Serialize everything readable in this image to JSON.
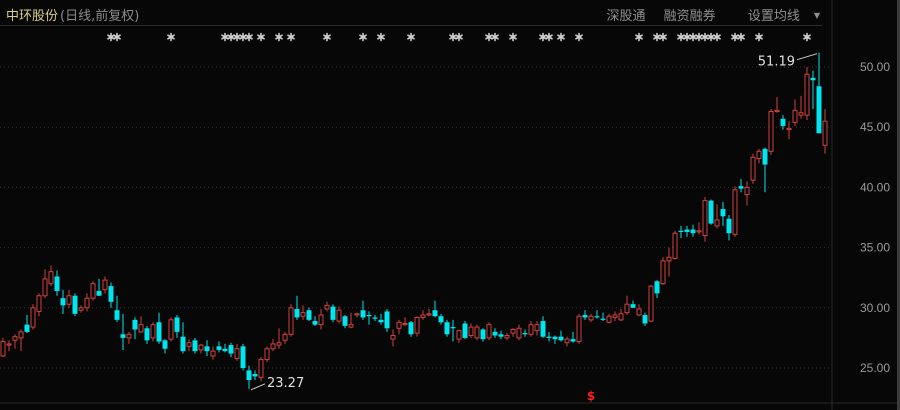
{
  "header": {
    "stock_name": "中环股份",
    "mode": "(日线,前复权)",
    "links": [
      "深股通",
      "融资融券",
      "设置均线"
    ],
    "dropdown_icon": "caret-down-icon"
  },
  "colors": {
    "up": "#d0403c",
    "down": "#00e5ee",
    "background": "#070707",
    "grid": "#333333",
    "axis_text": "#9a9a9a",
    "marker": "#cfcfcf",
    "special_marker": "#ff2020"
  },
  "chart_data": {
    "type": "candlestick",
    "title": "中环股份",
    "ylim": [
      22.5,
      52.5
    ],
    "yticks": [
      25,
      30,
      35,
      40,
      45,
      50
    ],
    "ytick_labels": [
      "25.00",
      "30.00",
      "35.00",
      "40.00",
      "45.00",
      "50.00"
    ],
    "grid": true,
    "annotations": {
      "max": {
        "label": "51.19",
        "value": 51.19
      },
      "min": {
        "label": "23.27",
        "value": 23.27
      }
    },
    "event_markers": [
      18,
      19,
      28,
      37,
      38,
      39,
      40,
      41,
      43,
      46,
      48,
      54,
      60,
      63,
      68,
      75,
      76,
      81,
      82,
      85,
      90,
      91,
      93,
      96,
      106,
      109,
      110,
      113,
      114,
      115,
      116,
      117,
      118,
      119,
      122,
      123,
      126,
      134
    ],
    "special_marker": {
      "index": 98,
      "label": "$"
    },
    "ohlc": [
      [
        26.0,
        27.5,
        25.9,
        27.2
      ],
      [
        26.9,
        27.3,
        26.4,
        27.0
      ],
      [
        27.3,
        27.8,
        26.6,
        27.6
      ],
      [
        27.5,
        28.2,
        26.4,
        28.0
      ],
      [
        28.6,
        29.4,
        27.9,
        28.0
      ],
      [
        28.4,
        30.3,
        28.2,
        30.0
      ],
      [
        29.7,
        31.2,
        29.3,
        31.0
      ],
      [
        31.0,
        33.2,
        30.8,
        32.4
      ],
      [
        32.0,
        33.5,
        31.8,
        33.0
      ],
      [
        32.6,
        33.1,
        31.0,
        31.4
      ],
      [
        30.8,
        31.5,
        29.5,
        30.2
      ],
      [
        30.3,
        31.5,
        30.0,
        31.0
      ],
      [
        31.0,
        31.2,
        29.3,
        29.5
      ],
      [
        29.8,
        30.2,
        29.6,
        30.0
      ],
      [
        30.0,
        31.2,
        29.7,
        30.8
      ],
      [
        30.8,
        32.2,
        30.6,
        32.0
      ],
      [
        31.4,
        32.4,
        31.0,
        31.0
      ],
      [
        31.5,
        32.6,
        31.2,
        32.3
      ],
      [
        31.8,
        32.1,
        30.0,
        30.5
      ],
      [
        29.8,
        31.0,
        28.8,
        29.0
      ],
      [
        27.8,
        29.5,
        26.5,
        27.5
      ],
      [
        27.5,
        28.0,
        27.0,
        27.8
      ],
      [
        29.0,
        29.2,
        27.4,
        28.2
      ],
      [
        28.0,
        29.3,
        27.9,
        28.6
      ],
      [
        28.3,
        28.5,
        27.0,
        27.3
      ],
      [
        27.5,
        28.8,
        27.2,
        28.6
      ],
      [
        28.8,
        29.6,
        27.0,
        27.2
      ],
      [
        27.3,
        27.4,
        26.2,
        26.6
      ],
      [
        27.4,
        29.2,
        27.2,
        29.0
      ],
      [
        29.2,
        29.4,
        27.5,
        28.0
      ],
      [
        27.6,
        28.8,
        26.2,
        26.4
      ],
      [
        26.8,
        27.4,
        26.4,
        27.1
      ],
      [
        27.3,
        27.5,
        26.2,
        26.4
      ],
      [
        26.5,
        27.0,
        26.2,
        26.9
      ],
      [
        26.8,
        27.3,
        26.0,
        26.4
      ],
      [
        26.0,
        26.8,
        25.7,
        26.4
      ],
      [
        26.8,
        27.2,
        26.3,
        26.5
      ],
      [
        26.6,
        27.0,
        26.3,
        26.4
      ],
      [
        26.9,
        27.1,
        25.9,
        26.2
      ],
      [
        25.8,
        27.0,
        25.6,
        26.6
      ],
      [
        26.8,
        27.0,
        24.8,
        25.0
      ],
      [
        24.8,
        25.2,
        23.27,
        24.0
      ],
      [
        24.5,
        24.8,
        24.0,
        24.3
      ],
      [
        24.2,
        25.9,
        23.9,
        25.7
      ],
      [
        25.7,
        26.8,
        25.5,
        26.6
      ],
      [
        26.6,
        27.4,
        26.4,
        27.0
      ],
      [
        26.9,
        28.3,
        26.6,
        27.1
      ],
      [
        27.3,
        28.0,
        27.0,
        27.8
      ],
      [
        27.8,
        30.3,
        27.6,
        30.0
      ],
      [
        29.9,
        31.0,
        29.0,
        29.2
      ],
      [
        29.3,
        30.2,
        29.0,
        29.6
      ],
      [
        29.8,
        30.0,
        28.9,
        29.0
      ],
      [
        28.9,
        29.3,
        28.5,
        28.6
      ],
      [
        28.6,
        29.9,
        28.2,
        29.4
      ],
      [
        29.9,
        30.5,
        29.7,
        30.2
      ],
      [
        30.1,
        30.3,
        28.8,
        29.0
      ],
      [
        28.9,
        30.1,
        28.7,
        29.8
      ],
      [
        29.3,
        29.4,
        28.3,
        28.5
      ],
      [
        28.4,
        29.6,
        28.3,
        28.6
      ],
      [
        29.4,
        29.6,
        29.2,
        29.5
      ],
      [
        29.8,
        30.6,
        29.0,
        29.2
      ],
      [
        29.4,
        29.7,
        28.6,
        29.3
      ],
      [
        29.2,
        29.4,
        28.9,
        29.1
      ],
      [
        29.0,
        29.5,
        28.6,
        28.8
      ],
      [
        29.7,
        29.9,
        28.0,
        28.3
      ],
      [
        27.4,
        28.2,
        26.8,
        27.7
      ],
      [
        28.3,
        29.0,
        27.8,
        28.8
      ],
      [
        28.6,
        29.2,
        28.5,
        28.7
      ],
      [
        28.8,
        28.9,
        27.6,
        27.8
      ],
      [
        27.9,
        29.3,
        27.6,
        29.2
      ],
      [
        29.2,
        29.8,
        29.0,
        29.4
      ],
      [
        29.4,
        29.9,
        29.3,
        29.5
      ],
      [
        29.8,
        30.6,
        29.2,
        29.3
      ],
      [
        29.3,
        29.5,
        28.6,
        28.8
      ],
      [
        28.8,
        29.0,
        27.6,
        27.8
      ],
      [
        28.4,
        29.0,
        27.2,
        28.3
      ],
      [
        27.4,
        28.2,
        27.1,
        28.1
      ],
      [
        28.7,
        28.9,
        27.4,
        27.5
      ],
      [
        27.7,
        28.7,
        27.5,
        28.4
      ],
      [
        27.5,
        28.6,
        27.3,
        28.4
      ],
      [
        28.2,
        28.3,
        27.2,
        27.4
      ],
      [
        27.5,
        28.8,
        27.3,
        28.6
      ],
      [
        28.0,
        28.3,
        27.5,
        27.7
      ],
      [
        27.8,
        28.1,
        27.4,
        27.6
      ],
      [
        27.5,
        27.9,
        27.3,
        27.7
      ],
      [
        27.9,
        28.3,
        27.6,
        28.2
      ],
      [
        27.5,
        28.6,
        27.3,
        28.3
      ],
      [
        27.9,
        28.2,
        27.6,
        27.8
      ],
      [
        27.8,
        28.9,
        27.6,
        28.6
      ],
      [
        28.1,
        28.9,
        27.7,
        28.6
      ],
      [
        28.9,
        29.3,
        27.5,
        27.6
      ],
      [
        27.6,
        28.0,
        27.2,
        27.5
      ],
      [
        27.6,
        27.7,
        27.0,
        27.4
      ],
      [
        27.6,
        28.1,
        27.2,
        27.3
      ],
      [
        27.1,
        27.6,
        26.8,
        27.4
      ],
      [
        27.4,
        28.0,
        27.1,
        27.2
      ],
      [
        27.2,
        29.5,
        27.0,
        29.3
      ],
      [
        29.4,
        29.8,
        29.0,
        29.2
      ],
      [
        29.0,
        29.5,
        28.8,
        29.3
      ],
      [
        29.3,
        29.8,
        29.1,
        29.2
      ],
      [
        29.1,
        29.6,
        28.9,
        29.0
      ],
      [
        28.8,
        29.5,
        28.7,
        29.3
      ],
      [
        29.2,
        29.7,
        28.9,
        29.4
      ],
      [
        29.0,
        29.9,
        28.9,
        29.5
      ],
      [
        29.6,
        31.0,
        29.4,
        30.3
      ],
      [
        30.3,
        30.6,
        30.0,
        30.0
      ],
      [
        29.4,
        30.3,
        29.3,
        29.9
      ],
      [
        29.4,
        29.6,
        28.5,
        28.7
      ],
      [
        28.9,
        31.9,
        28.8,
        31.8
      ],
      [
        32.2,
        32.3,
        30.8,
        31.2
      ],
      [
        32.0,
        34.2,
        31.9,
        33.9
      ],
      [
        33.9,
        35.0,
        32.6,
        34.2
      ],
      [
        34.1,
        36.4,
        34.0,
        36.2
      ],
      [
        36.4,
        36.8,
        35.8,
        36.3
      ],
      [
        36.5,
        36.8,
        35.9,
        36.3
      ],
      [
        36.5,
        36.9,
        35.9,
        36.2
      ],
      [
        36.3,
        37.1,
        36.1,
        36.4
      ],
      [
        36.0,
        39.2,
        35.5,
        38.9
      ],
      [
        38.9,
        39.0,
        36.9,
        37.0
      ],
      [
        36.8,
        38.6,
        36.6,
        37.3
      ],
      [
        38.2,
        38.8,
        36.8,
        37.6
      ],
      [
        37.4,
        37.7,
        35.6,
        36.2
      ],
      [
        36.1,
        40.1,
        35.9,
        39.8
      ],
      [
        40.1,
        40.7,
        39.6,
        39.9
      ],
      [
        39.4,
        40.5,
        38.5,
        40.0
      ],
      [
        40.6,
        42.8,
        40.3,
        42.5
      ],
      [
        42.4,
        43.2,
        42.0,
        43.0
      ],
      [
        43.2,
        43.3,
        39.6,
        41.9
      ],
      [
        43.0,
        46.5,
        42.7,
        46.3
      ],
      [
        46.3,
        47.5,
        46.2,
        46.4
      ],
      [
        45.7,
        46.0,
        44.8,
        45.1
      ],
      [
        44.8,
        45.5,
        44.0,
        44.9
      ],
      [
        45.4,
        47.3,
        45.1,
        46.4
      ],
      [
        46.0,
        47.6,
        45.7,
        46.2
      ],
      [
        46.0,
        50.0,
        45.6,
        49.4
      ],
      [
        49.1,
        49.7,
        46.5,
        48.9
      ],
      [
        48.4,
        51.19,
        44.5,
        44.5
      ],
      [
        43.5,
        46.5,
        42.8,
        45.5
      ]
    ]
  }
}
